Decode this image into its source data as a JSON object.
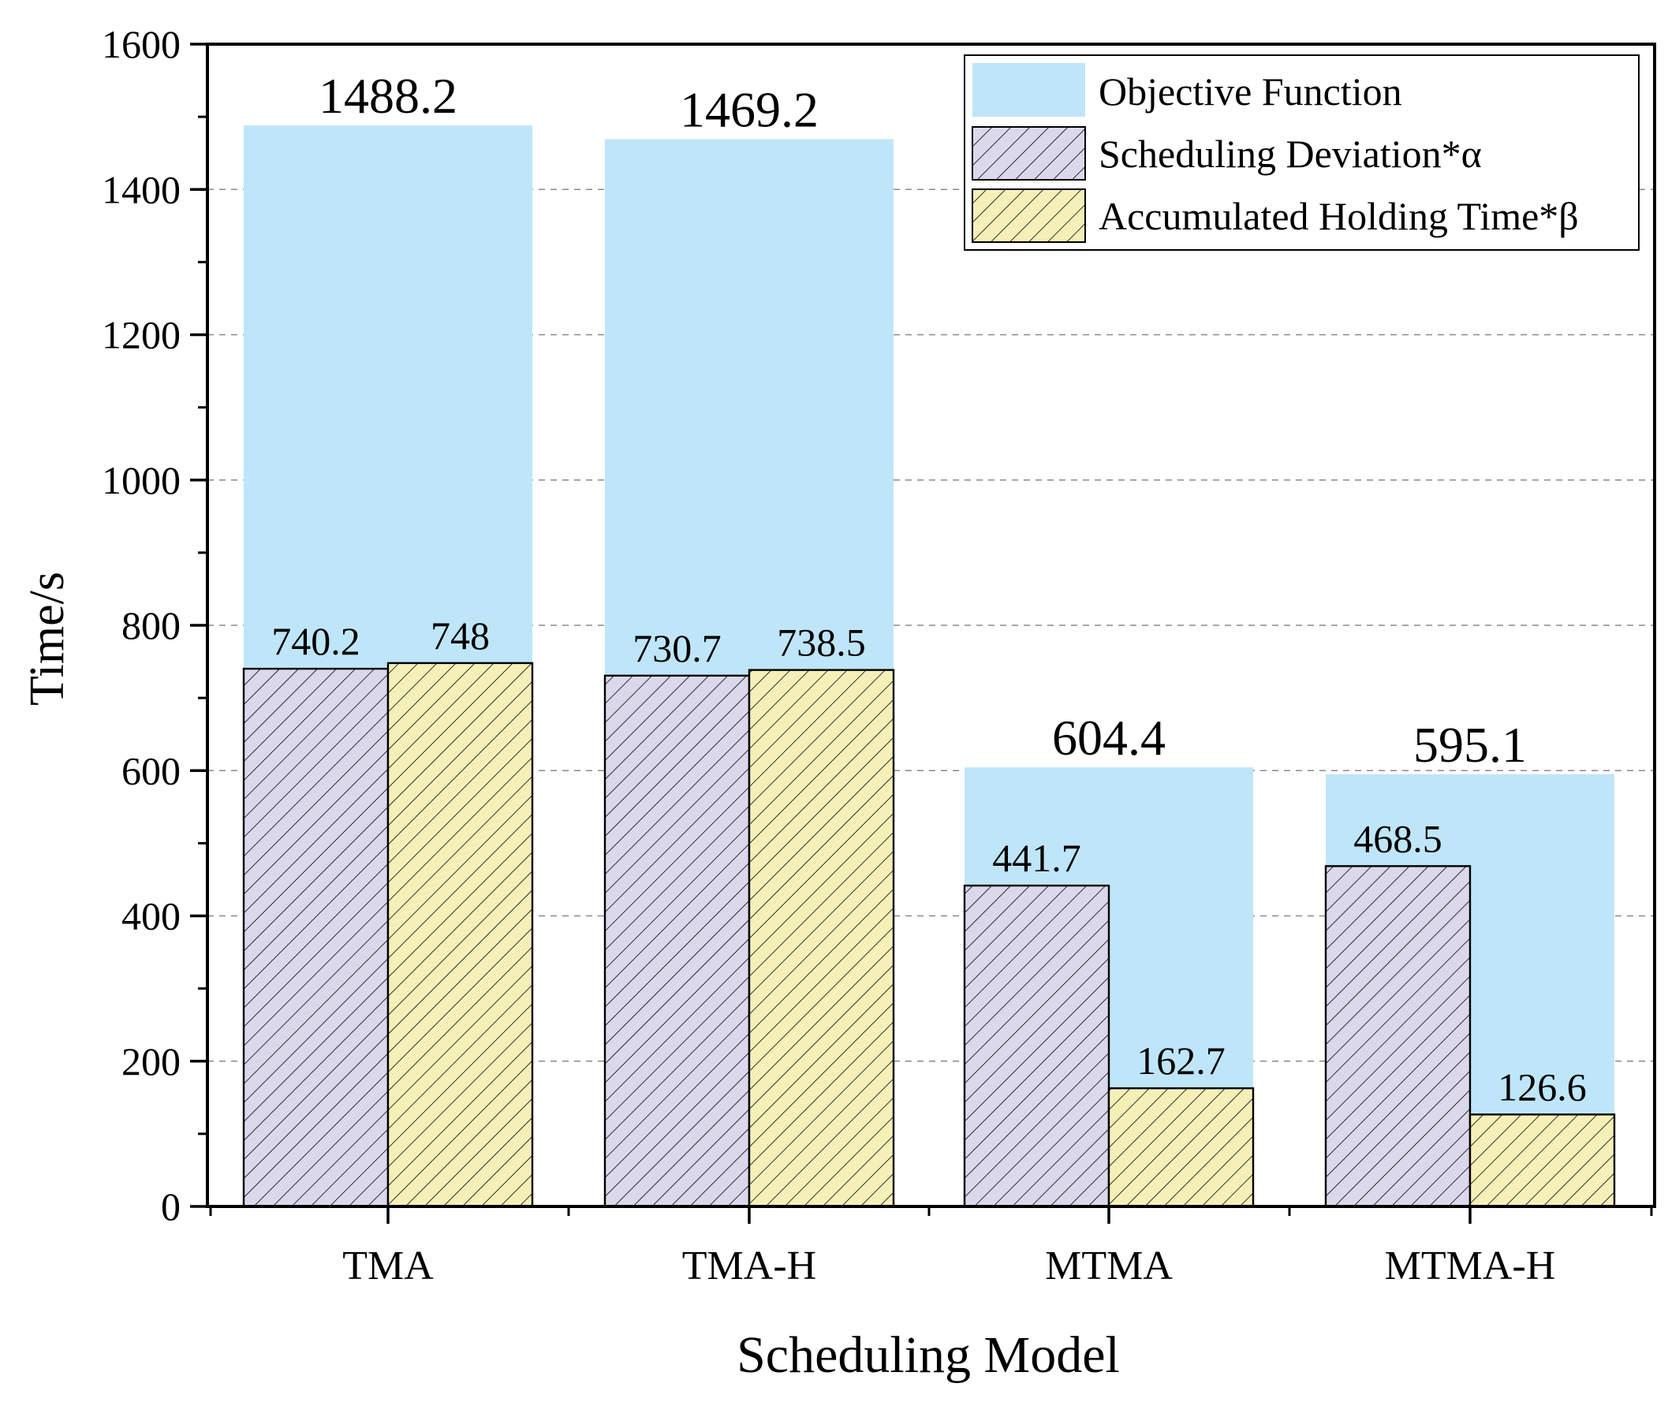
{
  "chart_data": {
    "type": "bar",
    "title": "",
    "xlabel": "Scheduling Model",
    "ylabel": "Time/s",
    "ylim": [
      0,
      1600
    ],
    "yticks": [
      "0",
      "200",
      "400",
      "600",
      "800",
      "1000",
      "1200",
      "1400",
      "1600"
    ],
    "grid": "horizontal dashed",
    "legend_position": "top-right",
    "categories": [
      "TMA",
      "TMA-H",
      "MTMA",
      "MTMA-H"
    ],
    "series": [
      {
        "name": "Objective Function",
        "values": [
          1488.2,
          1469.2,
          604.4,
          595.1
        ],
        "labels": [
          "1488.2",
          "1469.2",
          "604.4",
          "595.1"
        ],
        "color": "#bfe6f8",
        "pattern": "solid"
      },
      {
        "name": "Scheduling Deviation*α",
        "values": [
          740.2,
          730.7,
          441.7,
          468.5
        ],
        "labels": [
          "740.2",
          "730.7",
          "441.7",
          "468.5"
        ],
        "color": "#dcd8ec",
        "pattern": "hatch"
      },
      {
        "name": "Accumulated Holding Time*β",
        "values": [
          748,
          738.5,
          162.7,
          126.6
        ],
        "labels": [
          "748",
          "738.5",
          "162.7",
          "126.6"
        ],
        "color": "#f5f0b8",
        "pattern": "hatch"
      }
    ]
  }
}
